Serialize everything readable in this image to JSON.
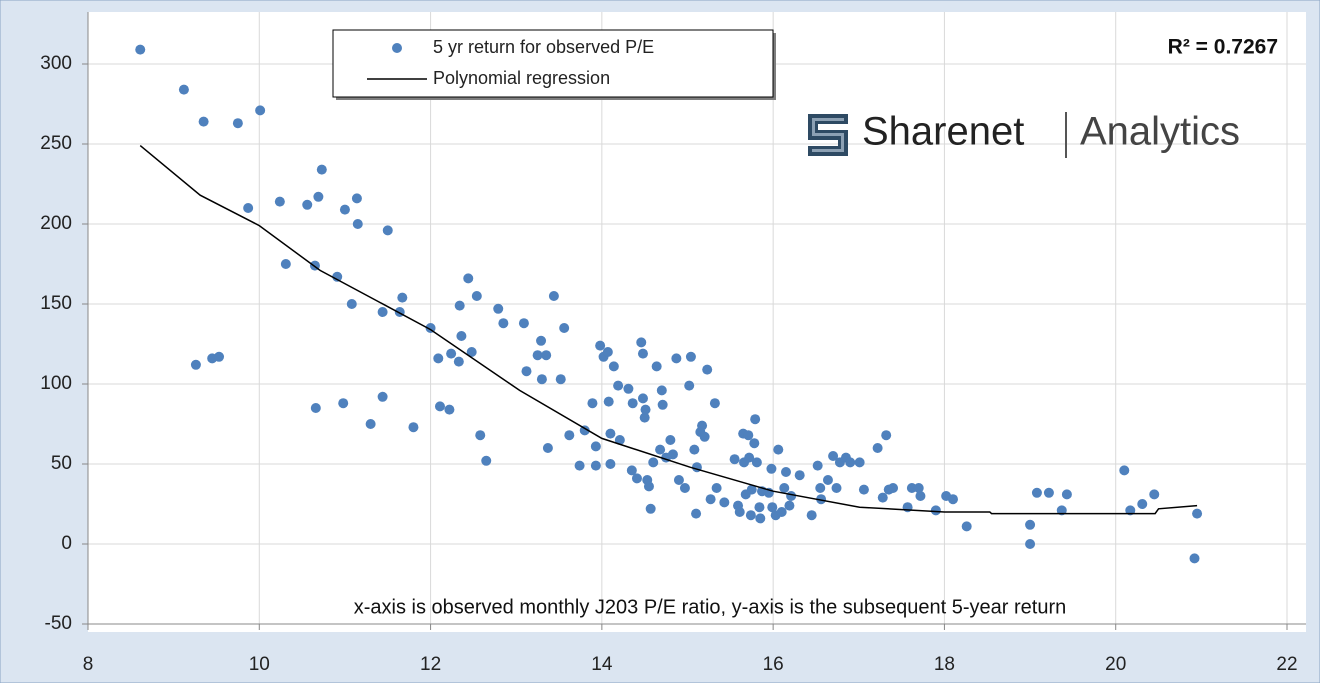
{
  "chart_data": {
    "type": "scatter",
    "series": [
      {
        "name": "5 yr return for observed P/E",
        "type": "scatter",
        "color": "#4f81bd",
        "x": [
          8.61,
          9.12,
          9.35,
          9.26,
          9.45,
          9.53,
          9.75,
          10.01,
          9.87,
          10.24,
          10.31,
          10.56,
          10.69,
          10.73,
          10.65,
          10.66,
          10.91,
          11.0,
          11.14,
          11.15,
          11.08,
          10.98,
          11.3,
          11.5,
          11.44,
          11.44,
          11.67,
          11.64,
          11.8,
          12.0,
          12.09,
          12.11,
          12.22,
          12.24,
          12.33,
          12.34,
          12.36,
          12.44,
          12.48,
          12.54,
          12.58,
          12.65,
          12.79,
          12.85,
          13.09,
          13.12,
          13.25,
          13.29,
          13.35,
          13.3,
          13.37,
          13.44,
          13.52,
          13.56,
          13.62,
          13.74,
          13.8,
          13.89,
          13.93,
          13.93,
          13.98,
          14.02,
          14.07,
          14.08,
          14.1,
          14.1,
          14.14,
          14.19,
          14.21,
          14.31,
          14.35,
          14.36,
          14.41,
          14.46,
          14.48,
          14.48,
          14.5,
          14.51,
          14.53,
          14.55,
          14.57,
          14.6,
          14.64,
          14.68,
          14.7,
          14.71,
          14.75,
          14.8,
          14.83,
          14.87,
          14.9,
          14.97,
          15.02,
          15.04,
          15.08,
          15.11,
          15.1,
          15.15,
          15.17,
          15.2,
          15.23,
          15.27,
          15.32,
          15.34,
          15.43,
          15.55,
          15.59,
          15.61,
          15.65,
          15.66,
          15.68,
          15.71,
          15.72,
          15.74,
          15.75,
          15.78,
          15.79,
          15.81,
          15.84,
          15.85,
          15.87,
          15.95,
          15.98,
          15.99,
          16.03,
          16.06,
          16.1,
          16.13,
          16.15,
          16.19,
          16.21,
          16.31,
          16.45,
          16.52,
          16.55,
          16.56,
          16.64,
          16.7,
          16.74,
          16.78,
          16.85,
          16.9,
          17.01,
          17.06,
          17.22,
          17.32,
          17.28,
          17.35,
          17.4,
          17.57,
          17.62,
          17.7,
          17.72,
          17.9,
          18.02,
          18.1,
          18.26,
          19.0,
          19.0,
          19.08,
          19.22,
          19.37,
          19.43,
          20.1,
          20.17,
          20.31,
          20.45,
          20.92,
          20.95
        ],
        "values": [
          309,
          284,
          264,
          112,
          116,
          117,
          263,
          271,
          210,
          214,
          175,
          212,
          217,
          234,
          174,
          85,
          167,
          209,
          216,
          200,
          150,
          88,
          75,
          196,
          145,
          92,
          154,
          145,
          73,
          135,
          116,
          86,
          84,
          119,
          114,
          149,
          130,
          166,
          120,
          155,
          68,
          52,
          147,
          138,
          138,
          108,
          118,
          127,
          118,
          103,
          60,
          155,
          103,
          135,
          68,
          49,
          71,
          88,
          61,
          49,
          124,
          117,
          120,
          89,
          69,
          50,
          111,
          99,
          65,
          97,
          46,
          88,
          41,
          126,
          119,
          91,
          79,
          84,
          40,
          36,
          22,
          51,
          111,
          59,
          96,
          87,
          54,
          65,
          56,
          116,
          40,
          35,
          99,
          117,
          59,
          48,
          19,
          70,
          74,
          67,
          109,
          28,
          88,
          35,
          26,
          53,
          24,
          20,
          69,
          51,
          31,
          68,
          54,
          18,
          34,
          63,
          78,
          51,
          23,
          16,
          33,
          32,
          47,
          23,
          18,
          59,
          20,
          35,
          45,
          24,
          30,
          43,
          18,
          49,
          35,
          28,
          40,
          55,
          35,
          51,
          54,
          51,
          51,
          34,
          60,
          68,
          29,
          34,
          35,
          23,
          35,
          35,
          30,
          21,
          30,
          28,
          11,
          12,
          0,
          32,
          32,
          21,
          31,
          46,
          21,
          25,
          31,
          -9,
          19
        ]
      },
      {
        "name": "Polynomial regression",
        "type": "line",
        "color": "#000000",
        "x": [
          8.61,
          9.31,
          10.0,
          10.71,
          12.0,
          13.04,
          14.0,
          15.03,
          16.0,
          17.01,
          18.0,
          18.53,
          18.55,
          19.82,
          20.46,
          20.5,
          20.95
        ],
        "values": [
          249,
          218,
          199,
          171,
          134,
          96,
          66,
          48,
          33,
          23,
          20,
          20,
          19,
          19,
          19,
          22,
          24
        ]
      }
    ],
    "xlim": [
      8,
      22
    ],
    "xticks": [
      8,
      10,
      12,
      14,
      16,
      18,
      20,
      22
    ],
    "ylim": [
      -50,
      320
    ],
    "yticks": [
      -50,
      0,
      50,
      100,
      150,
      200,
      250,
      300
    ],
    "grid": true,
    "legend": "top-center",
    "annotations": [
      "R² = 0.7267",
      "x-axis is observed  monthly J203 P/E ratio, y-axis  is the subsequent 5-year return"
    ],
    "logo": [
      "Sharenet",
      "Analytics"
    ]
  }
}
